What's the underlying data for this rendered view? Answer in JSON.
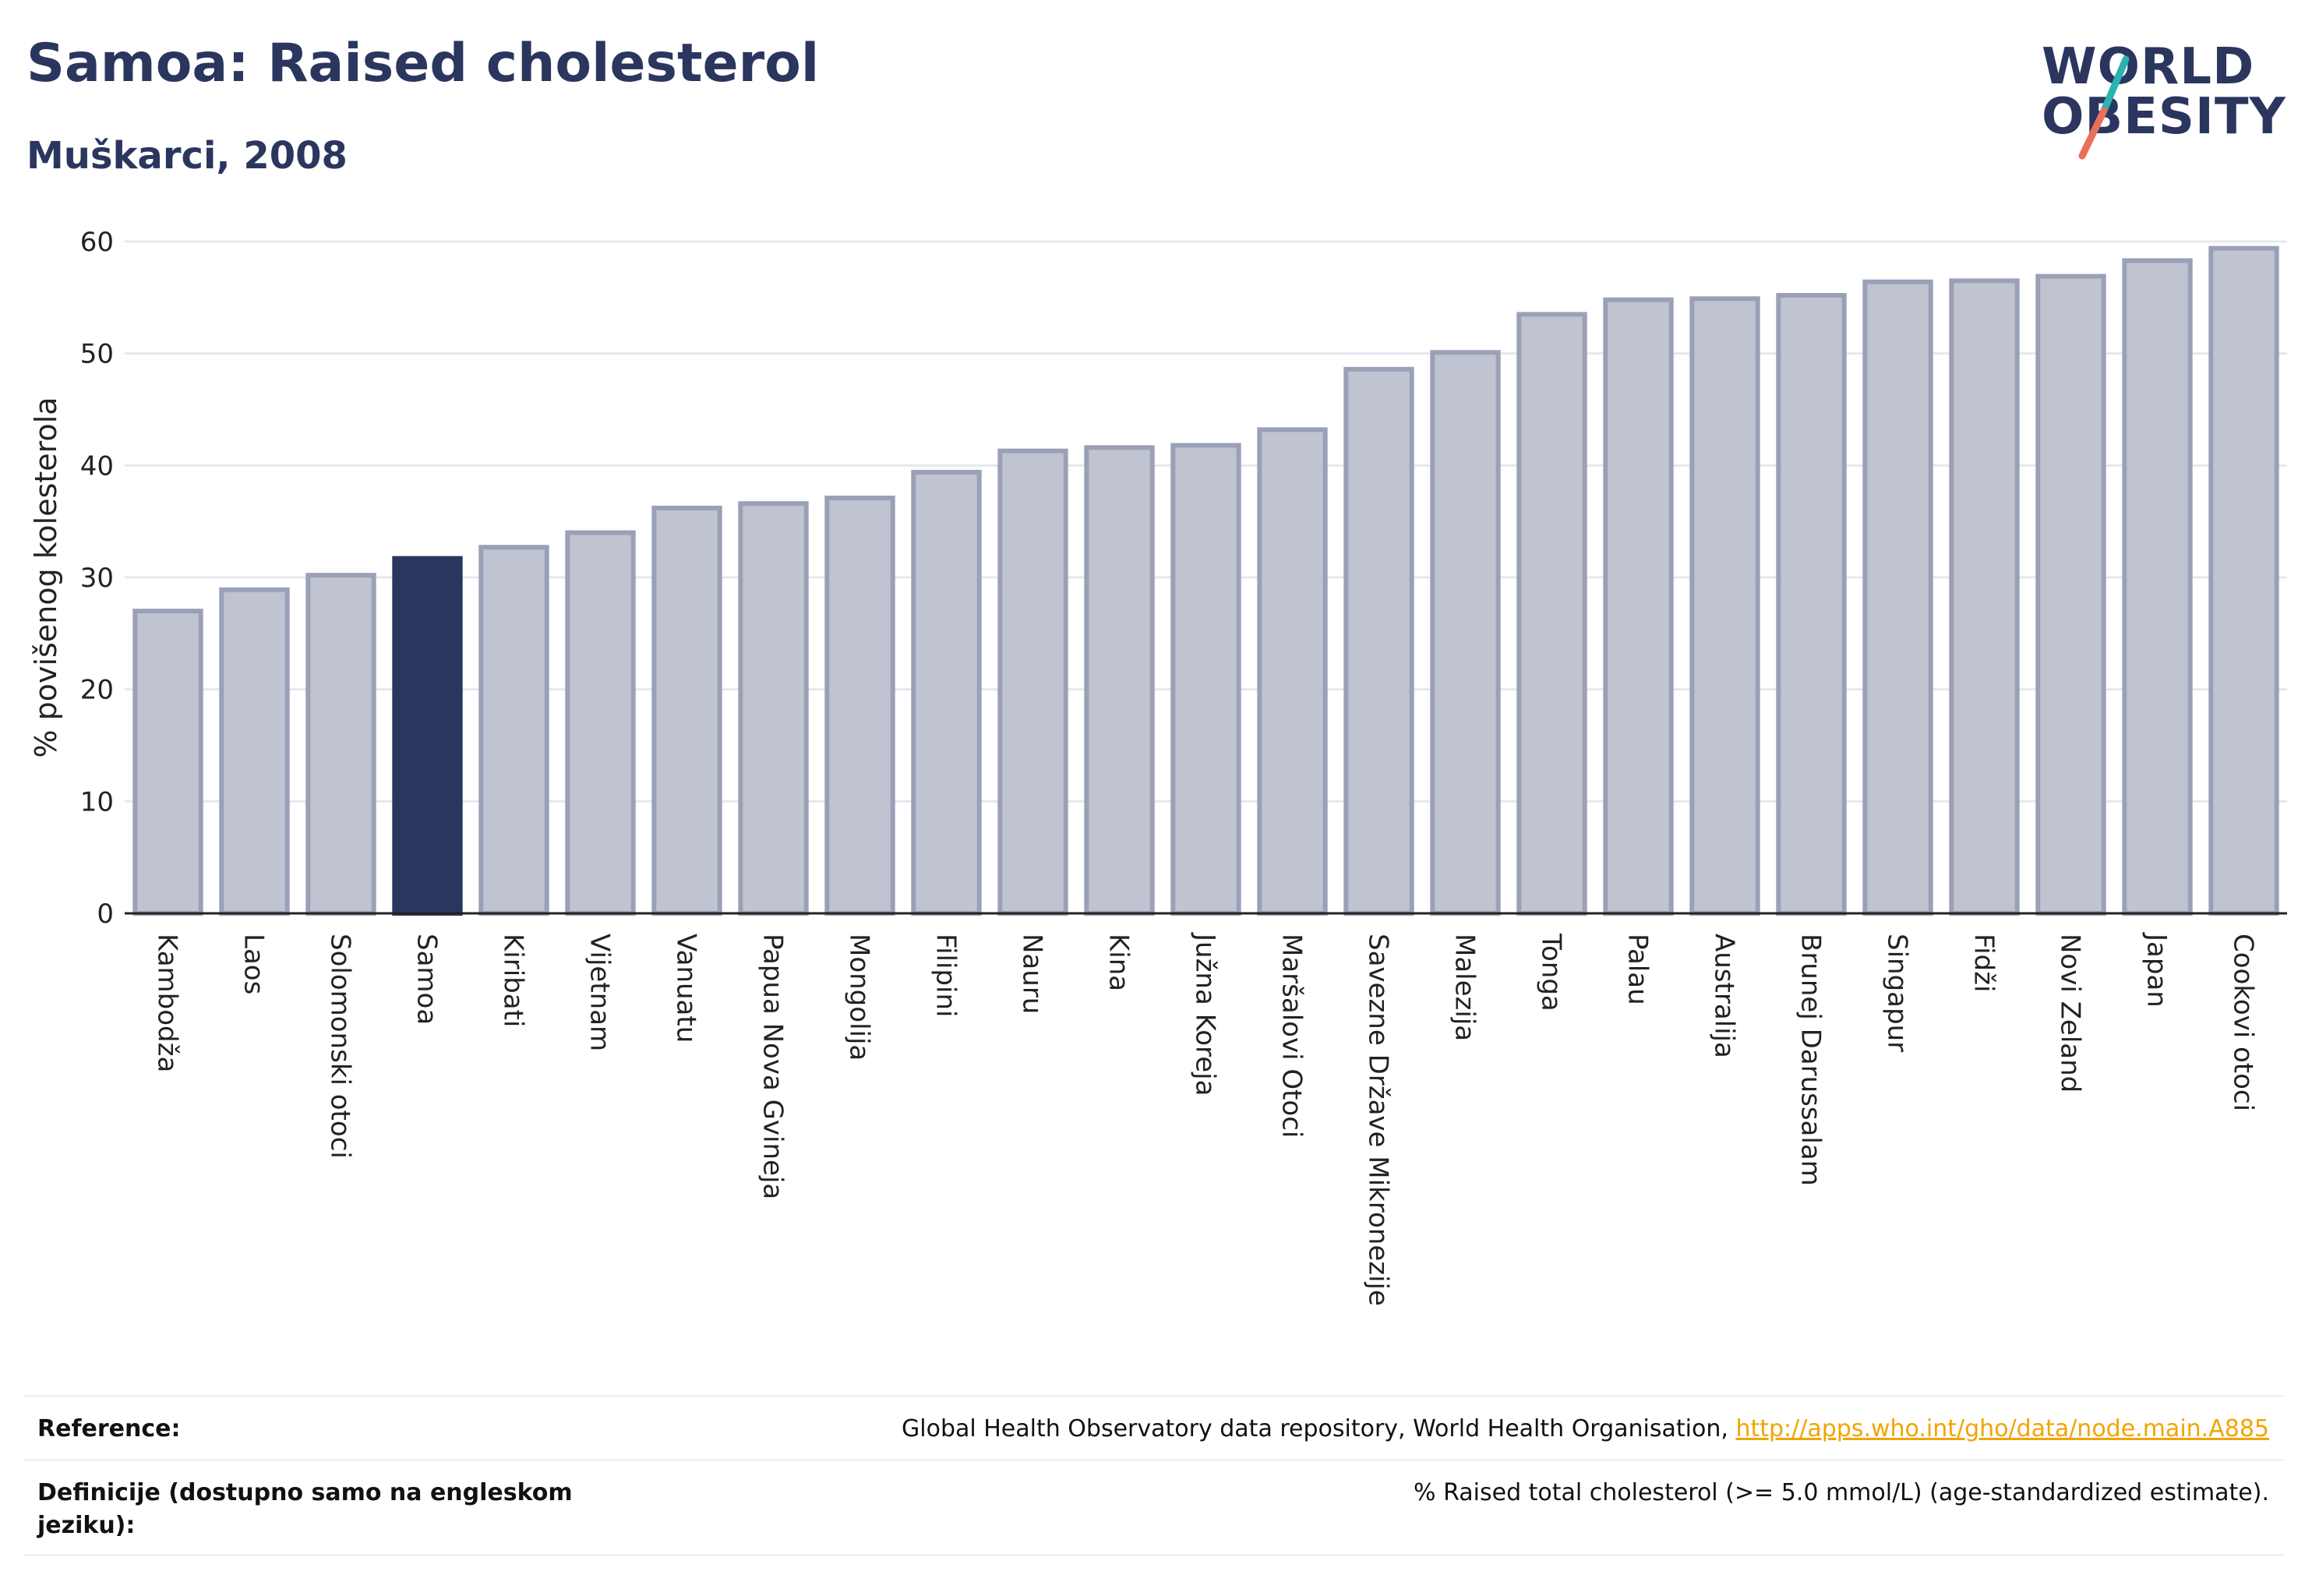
{
  "header": {
    "title": "Samoa: Raised cholesterol",
    "subtitle": "Muškarci, 2008"
  },
  "logo": {
    "line1": "WORLD",
    "line2": "OBESITY",
    "accent_colors": [
      "#2ab3b0",
      "#e8705a"
    ]
  },
  "colors": {
    "highlight_bar": "#2b365f",
    "bar_fill": "#c0c4d0",
    "bar_stroke": "#9aa0b6",
    "gridline": "#e6e8ee",
    "link": "#f0a500"
  },
  "chart_data": {
    "type": "bar",
    "ylabel": "% povišenog kolesterola",
    "xlabel": "",
    "ylim": [
      0,
      60
    ],
    "yticks": [
      0,
      10,
      20,
      30,
      40,
      50,
      60
    ],
    "grid": true,
    "highlight": "Samoa",
    "categories": [
      "Kambodža",
      "Laos",
      "Solomonski otoci",
      "Samoa",
      "Kiribati",
      "Vijetnam",
      "Vanuatu",
      "Papua Nova Gvineja",
      "Mongolija",
      "Filipini",
      "Nauru",
      "Kina",
      "Južna Koreja",
      "Maršalovi Otoci",
      "Savezne Države Mikronezije",
      "Malezija",
      "Tonga",
      "Palau",
      "Australija",
      "Brunej Darussalam",
      "Singapur",
      "Fidži",
      "Novi Zeland",
      "Japan",
      "Cookovi otoci"
    ],
    "values": [
      27.0,
      28.9,
      30.2,
      31.7,
      32.7,
      34.0,
      36.2,
      36.6,
      37.1,
      39.4,
      41.3,
      41.6,
      41.8,
      43.2,
      48.6,
      50.1,
      53.5,
      54.8,
      54.9,
      55.2,
      56.4,
      56.5,
      56.9,
      58.3,
      59.4
    ]
  },
  "footer": {
    "reference_label": "Reference:",
    "reference_text": "Global Health Observatory data repository, World Health Organisation, ",
    "reference_link": "http://apps.who.int/gho/data/node.main.A885",
    "definition_label": "Definicije (dostupno samo na engleskom jeziku):",
    "definition_text": "% Raised total cholesterol (>= 5.0 mmol/L) (age-standardized estimate)."
  }
}
